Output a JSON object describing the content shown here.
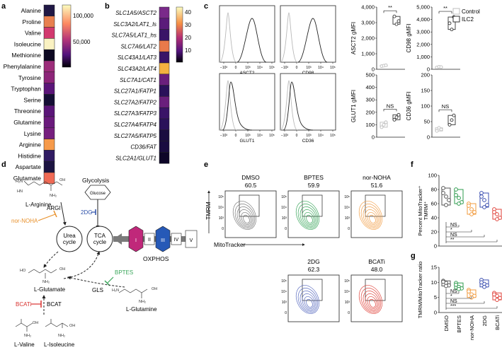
{
  "panel_labels": {
    "a": "a",
    "b": "b",
    "c": "c",
    "d": "d",
    "e": "e",
    "f": "f",
    "g": "g"
  },
  "panel_a": {
    "rows": [
      "Alanine",
      "Proline",
      "Valine",
      "Isoleucine",
      "Methionine",
      "Phenylalanine",
      "Tyrosine",
      "Tryptophan",
      "Serine",
      "Threonine",
      "Glutamine",
      "Lysine",
      "Arginine",
      "Histidine",
      "Aspartate",
      "Glutamate"
    ],
    "colors": [
      "#201845",
      "#e8804f",
      "#d2396e",
      "#faf2c2",
      "#0d0822",
      "#9c2d7a",
      "#8d2579",
      "#5b1579",
      "#150e35",
      "#5a1578",
      "#6a1a7c",
      "#761f7e",
      "#f69a4a",
      "#301b62",
      "#1c1442",
      "#f06a55"
    ],
    "scale_ticks": [
      "100,000",
      "50,000"
    ],
    "scale_colors": [
      "#fcfdbf",
      "#fc8961",
      "#b73779",
      "#51127c",
      "#000004"
    ]
  },
  "panel_b": {
    "rows": [
      "SLC1A5/ASCT2",
      "SLC3A2/LAT1_ls",
      "SLC7A5/LAT1_hs",
      "SLC7A6/LAT2",
      "SLC43A1/LAT3",
      "SLC43A2/LAT4",
      "SLC7A1/CAT1",
      "SLC27A1/FATP1",
      "SLC27A2/FATP2",
      "SLC27A3/FATP3",
      "SLC27A4/FATP4",
      "SLC27A5/FATP5",
      "CD36/FAT",
      "SLC2A1/GLUT1"
    ],
    "colors": [
      "#7a2a8a",
      "#5b1b7a",
      "#3a1467",
      "#e97a4a",
      "#3a1467",
      "#f4b240",
      "#6a1f7c",
      "#2a115a",
      "#6a1f7c",
      "#3a1467",
      "#2a115a",
      "#1a0c40",
      "#1a0c40",
      "#0e0628"
    ],
    "scale_ticks": [
      "40",
      "30",
      "20",
      "10"
    ],
    "scale_colors": [
      "#fcfdbf",
      "#f68f44",
      "#b52f74",
      "#51127c",
      "#000004"
    ]
  },
  "panel_c": {
    "histograms": [
      {
        "label": "ASCT2",
        "peak": "right"
      },
      {
        "label": "CD98",
        "peak": "right"
      },
      {
        "label": "GLUT1",
        "peak": "left"
      },
      {
        "label": "CD36",
        "peak": "left"
      }
    ],
    "x_ticks": [
      "−10³",
      "0",
      "10³",
      "10⁴",
      "10⁵"
    ],
    "legend": [
      "Control",
      "ILC2"
    ],
    "legend_colors": [
      "#bdbdbd",
      "#333333"
    ],
    "plots": [
      {
        "ylabel": "ASCT2 gMFI",
        "ticks": [
          "4,000",
          "3,000",
          "2,000",
          "1,000",
          "0"
        ],
        "sig": "**",
        "ymax": 4000,
        "control": [
          200,
          230,
          260
        ],
        "ilc2": [
          3400,
          2900,
          3100
        ]
      },
      {
        "ylabel": "CD98 gMFI",
        "ticks": [
          "5,000",
          "4,000",
          "3,000",
          "2,000",
          "1,000",
          "0"
        ],
        "sig": "**",
        "ymax": 5000,
        "control": [
          150,
          200,
          180
        ],
        "ilc2": [
          3700,
          3200,
          4200
        ]
      },
      {
        "ylabel": "GLUT1 gMFI",
        "ticks": [
          "500",
          "400",
          "300",
          "200",
          "100",
          "0"
        ],
        "sig": "NS",
        "ymax": 500,
        "control": [
          80,
          100,
          120
        ],
        "ilc2": [
          140,
          160,
          180
        ]
      },
      {
        "ylabel": "CD36 gMFI",
        "ticks": [
          "200",
          "150",
          "100",
          "50",
          "0"
        ],
        "sig": "NS",
        "ymax": 200,
        "control": [
          20,
          30,
          25
        ],
        "ilc2": [
          40,
          55,
          70
        ]
      }
    ]
  },
  "panel_d": {
    "glycolysis": "Glycolysis",
    "glucose": "Glucose",
    "inhibitor_2dg": "2DG",
    "arginine": "L-Arginine",
    "argi": "ARGI",
    "nor_noha": "nor-NOHA",
    "urea_cycle": [
      "Urea",
      "cycle"
    ],
    "tca_cycle": [
      "TCA",
      "cycle"
    ],
    "complexes": [
      "I",
      "II",
      "III",
      "IV",
      "V"
    ],
    "oxphos": "OXPHOS",
    "bptes": "BPTES",
    "gls": "GLS",
    "glutamate": "L-Glutamate",
    "glutamine": "L-Glutamine",
    "bcati": "BCATi",
    "bcat": "BCAT",
    "valine": "L-Valine",
    "isoleucine": "L-Isoleucine"
  },
  "panel_e": {
    "ylabel": "TMRM",
    "xlabel": "MitoTracker",
    "y_ticks": [
      "10⁵",
      "10⁴",
      "10³",
      "0"
    ],
    "plots": [
      {
        "name": "DMSO",
        "value": "60.5",
        "color": "#7a7a7a"
      },
      {
        "name": "BPTES",
        "value": "59.9",
        "color": "#3aa65b"
      },
      {
        "name": "nor-NOHA",
        "value": "51.6",
        "color": "#f2a04a"
      },
      {
        "name": "2DG",
        "value": "62.3",
        "color": "#5a6cc0"
      },
      {
        "name": "BCATi",
        "value": "48.0",
        "color": "#e0463e"
      }
    ]
  },
  "panel_f": {
    "ylabel": [
      "Percent MitoTracker⁺",
      "TMRM⁺"
    ],
    "ticks": [
      "100",
      "80",
      "60",
      "40",
      "20",
      "0"
    ],
    "ymax": 100,
    "sig": [
      "NS",
      "*",
      "NS",
      "**"
    ],
    "groups": [
      {
        "color": "#555555",
        "values": [
          82,
          70,
          65,
          75,
          58
        ]
      },
      {
        "color": "#2e9b4e",
        "values": [
          80,
          68,
          62,
          72,
          60
        ]
      },
      {
        "color": "#f29b3e",
        "values": [
          60,
          52,
          48,
          57,
          45
        ]
      },
      {
        "color": "#3b4fb0",
        "values": [
          75,
          65,
          58,
          70,
          55
        ]
      },
      {
        "color": "#e0463e",
        "values": [
          52,
          45,
          40,
          48,
          38
        ]
      }
    ]
  },
  "panel_g": {
    "ylabel": "TMRM/MitoTracker ratio",
    "ticks": [
      "15",
      "10",
      "5",
      "0"
    ],
    "ymax": 15,
    "sig": [
      "NS",
      "*",
      "NS",
      "***"
    ],
    "categories": [
      "DMSO",
      "BPTES",
      "nor-NOHA",
      "2DG",
      "BCATi"
    ],
    "groups": [
      {
        "color": "#555555",
        "values": [
          10.5,
          9.8,
          9.0,
          10.2,
          8.8
        ]
      },
      {
        "color": "#2e9b4e",
        "values": [
          9.8,
          8.5,
          8.0,
          9.2,
          7.8
        ]
      },
      {
        "color": "#f29b3e",
        "values": [
          7.5,
          6.0,
          5.5,
          7.0,
          5.0
        ]
      },
      {
        "color": "#3b4fb0",
        "values": [
          10.8,
          9.5,
          9.0,
          10.0,
          8.5
        ]
      },
      {
        "color": "#e0463e",
        "values": [
          6.5,
          5.5,
          4.8,
          6.0,
          4.2
        ]
      }
    ]
  }
}
